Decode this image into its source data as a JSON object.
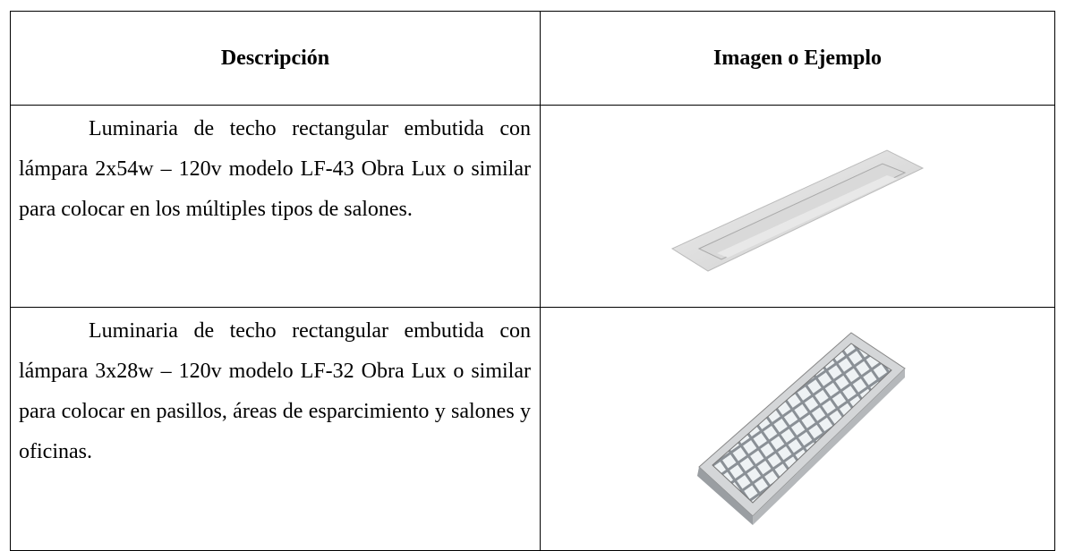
{
  "table": {
    "header": [
      "Descripción",
      "Imagen o Ejemplo"
    ],
    "rows": [
      [
        "Luminaria de techo rectangular embutida con lámpara 2x54w – 120v modelo LF-43 Obra Lux o similar para colocar en los múltiples tipos de salones."
      ],
      [
        "Luminaria de techo rectangular embutida con lámpara 3x28w – 120v modelo LF-32 Obra Lux o similar para colocar en pasillos, áreas de esparcimiento y salones y oficinas."
      ]
    ]
  }
}
